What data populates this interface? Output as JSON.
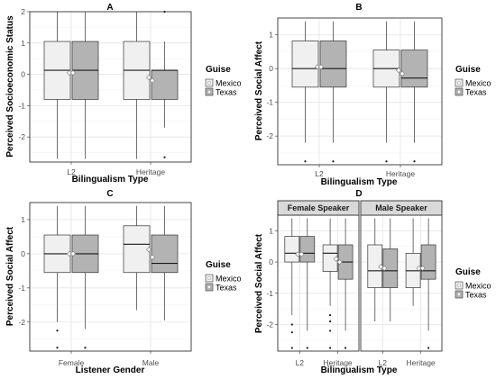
{
  "chart_data": [
    {
      "panel": "A",
      "type": "box",
      "title": "A",
      "xlabel": "Bilingualism Type",
      "ylabel": "Perceived Socioeconomic Status",
      "ylim": [
        -2.8,
        2.0
      ],
      "yticks": [
        2,
        1,
        0,
        -1,
        -2
      ],
      "categories": [
        "L2",
        "Heritage"
      ],
      "legend": {
        "title": "Guise",
        "entries": [
          "Mexico",
          "Texas"
        ],
        "colors": [
          "#f0f0f0",
          "#b3b3b3"
        ]
      },
      "groups": [
        {
          "cat": "L2",
          "guise": "Mexico",
          "min": -2.7,
          "q1": -0.8,
          "median": 0.13,
          "q3": 1.05,
          "max": 2.0,
          "mean": 0.05,
          "outliers": []
        },
        {
          "cat": "L2",
          "guise": "Texas",
          "min": -2.7,
          "q1": -0.8,
          "median": 0.13,
          "q3": 1.05,
          "max": 2.0,
          "mean": 0.05,
          "outliers": []
        },
        {
          "cat": "Heritage",
          "guise": "Mexico",
          "min": -2.7,
          "q1": -0.8,
          "median": 0.13,
          "q3": 1.05,
          "max": 2.0,
          "mean": -0.1,
          "outliers": []
        },
        {
          "cat": "Heritage",
          "guise": "Texas",
          "min": -1.7,
          "q1": -0.8,
          "median": 0.13,
          "q3": 0.13,
          "max": 1.05,
          "mean": -0.2,
          "outliers": [
            2.0,
            -2.65
          ]
        }
      ]
    },
    {
      "panel": "B",
      "type": "box",
      "title": "B",
      "xlabel": "Bilingualism Type",
      "ylabel": "Perceived Social Affect",
      "ylim": [
        -2.85,
        1.5
      ],
      "yticks": [
        1,
        0,
        -1,
        -2
      ],
      "categories": [
        "L2",
        "Heritage"
      ],
      "legend": {
        "title": "Guise",
        "entries": [
          "Mexico",
          "Texas"
        ],
        "colors": [
          "#f0f0f0",
          "#b3b3b3"
        ]
      },
      "groups": [
        {
          "cat": "L2",
          "guise": "Mexico",
          "min": -2.2,
          "q1": -0.55,
          "median": 0.0,
          "q3": 0.82,
          "max": 1.4,
          "mean": 0.05,
          "outliers": [
            -2.75
          ]
        },
        {
          "cat": "L2",
          "guise": "Texas",
          "min": -2.2,
          "q1": -0.55,
          "median": 0.0,
          "q3": 0.82,
          "max": 1.4,
          "mean": 0.05,
          "outliers": [
            -2.75
          ]
        },
        {
          "cat": "Heritage",
          "guise": "Mexico",
          "min": -2.2,
          "q1": -0.55,
          "median": 0.0,
          "q3": 0.55,
          "max": 1.4,
          "mean": -0.05,
          "outliers": [
            -2.75
          ]
        },
        {
          "cat": "Heritage",
          "guise": "Texas",
          "min": -2.2,
          "q1": -0.55,
          "median": -0.28,
          "q3": 0.55,
          "max": 1.4,
          "mean": -0.15,
          "outliers": [
            -2.75
          ]
        }
      ]
    },
    {
      "panel": "C",
      "type": "box",
      "title": "C",
      "xlabel": "Listener Gender",
      "ylabel": "Perceived Social Affect",
      "ylim": [
        -2.85,
        1.5
      ],
      "yticks": [
        1,
        0,
        -1,
        -2
      ],
      "categories": [
        "Female",
        "Male"
      ],
      "legend": {
        "title": "Guise",
        "entries": [
          "Mexico",
          "Texas"
        ],
        "colors": [
          "#f0f0f0",
          "#b3b3b3"
        ]
      },
      "groups": [
        {
          "cat": "Female",
          "guise": "Mexico",
          "min": -2.0,
          "q1": -0.55,
          "median": 0.0,
          "q3": 0.55,
          "max": 1.4,
          "mean": 0.0,
          "outliers": [
            -2.25,
            -2.75
          ]
        },
        {
          "cat": "Female",
          "guise": "Texas",
          "min": -2.2,
          "q1": -0.55,
          "median": 0.0,
          "q3": 0.55,
          "max": 1.4,
          "mean": 0.0,
          "outliers": [
            -2.75
          ]
        },
        {
          "cat": "Male",
          "guise": "Mexico",
          "min": -1.65,
          "q1": -0.55,
          "median": 0.28,
          "q3": 0.82,
          "max": 1.4,
          "mean": 0.12,
          "outliers": []
        },
        {
          "cat": "Male",
          "guise": "Texas",
          "min": -1.95,
          "q1": -0.55,
          "median": -0.28,
          "q3": 0.55,
          "max": 1.4,
          "mean": -0.1,
          "outliers": []
        }
      ]
    },
    {
      "panel": "D",
      "type": "box",
      "title": "D",
      "xlabel": "Bilingualism Type",
      "ylabel": "Perceived Social Affect",
      "ylim": [
        -2.85,
        1.5
      ],
      "yticks": [
        1,
        0,
        -1,
        -2
      ],
      "categories": [
        "L2",
        "Heritage"
      ],
      "facets": [
        "Female Speaker",
        "Male Speaker"
      ],
      "legend": {
        "title": "Guise",
        "entries": [
          "Mexico",
          "Texas"
        ],
        "colors": [
          "#f0f0f0",
          "#b3b3b3"
        ]
      },
      "groups": [
        {
          "facet": "Female Speaker",
          "cat": "L2",
          "guise": "Mexico",
          "min": -1.7,
          "q1": 0.0,
          "median": 0.28,
          "q3": 0.82,
          "max": 1.4,
          "mean": 0.25,
          "outliers": [
            -2.0,
            -2.25,
            -2.75
          ]
        },
        {
          "facet": "Female Speaker",
          "cat": "L2",
          "guise": "Texas",
          "min": -2.2,
          "q1": 0.0,
          "median": 0.28,
          "q3": 0.82,
          "max": 1.4,
          "mean": 0.25,
          "outliers": [
            -2.75
          ]
        },
        {
          "facet": "Female Speaker",
          "cat": "Heritage",
          "guise": "Mexico",
          "min": -1.4,
          "q1": -0.3,
          "median": 0.28,
          "q3": 0.55,
          "max": 1.4,
          "mean": 0.1,
          "outliers": [
            -1.7,
            -1.9,
            -2.2,
            -2.75
          ]
        },
        {
          "facet": "Female Speaker",
          "cat": "Heritage",
          "guise": "Texas",
          "min": -2.2,
          "q1": -0.55,
          "median": 0.0,
          "q3": 0.55,
          "max": 1.4,
          "mean": 0.0,
          "outliers": [
            -2.75
          ]
        },
        {
          "facet": "Male Speaker",
          "cat": "L2",
          "guise": "Mexico",
          "min": -1.9,
          "q1": -0.82,
          "median": -0.28,
          "q3": 0.55,
          "max": 1.4,
          "mean": -0.15,
          "outliers": []
        },
        {
          "facet": "Male Speaker",
          "cat": "L2",
          "guise": "Texas",
          "min": -1.9,
          "q1": -0.82,
          "median": -0.28,
          "q3": 0.42,
          "max": 1.4,
          "mean": -0.2,
          "outliers": []
        },
        {
          "facet": "Male Speaker",
          "cat": "Heritage",
          "guise": "Mexico",
          "min": -1.4,
          "q1": -0.82,
          "median": -0.28,
          "q3": 0.28,
          "max": 1.4,
          "mean": -0.2,
          "outliers": []
        },
        {
          "facet": "Male Speaker",
          "cat": "Heritage",
          "guise": "Texas",
          "min": -2.2,
          "q1": -0.55,
          "median": -0.28,
          "q3": 0.55,
          "max": 1.4,
          "mean": -0.2,
          "outliers": [
            -2.75
          ]
        }
      ]
    }
  ]
}
